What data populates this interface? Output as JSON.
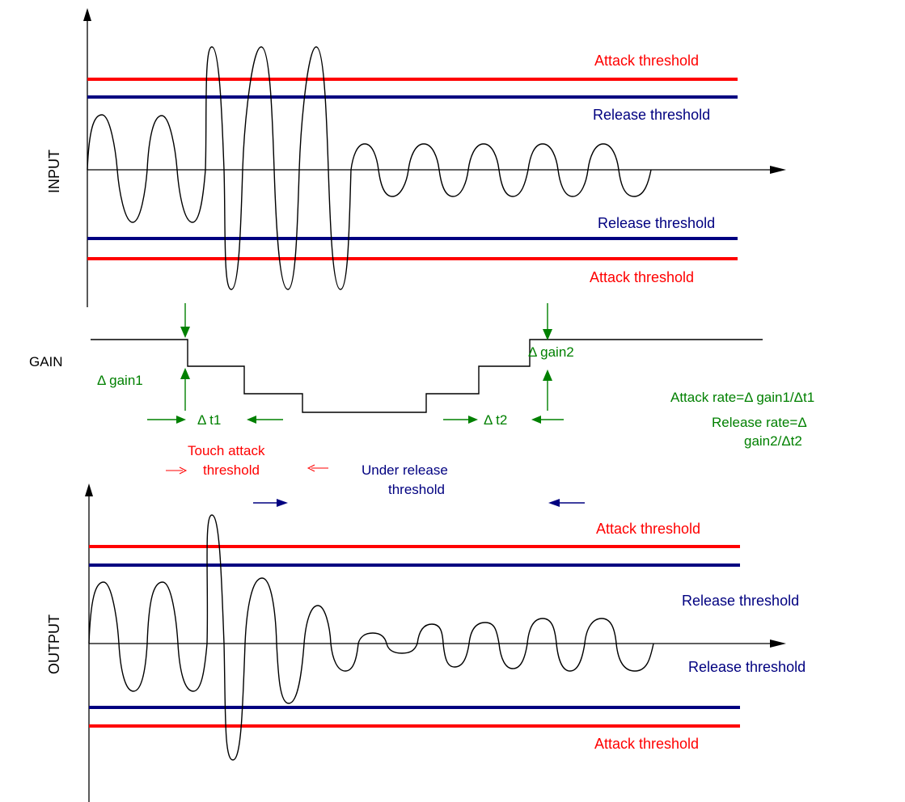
{
  "colors": {
    "attack": "#ff0000",
    "release": "#000080",
    "gain_annot": "#008000",
    "wave": "#000000",
    "axis": "#000000"
  },
  "input_panel": {
    "axis_label": "INPUT",
    "attack_top_label": "Attack threshold",
    "release_top_label": "Release threshold",
    "release_bottom_label": "Release threshold",
    "attack_bottom_label": "Attack threshold"
  },
  "gain_panel": {
    "axis_label": "GAIN",
    "delta_gain1": "Δ gain1",
    "delta_t1": "Δ t1",
    "delta_t2": "Δ t2",
    "delta_gain2": "Δ gain2",
    "attack_rate": "Attack rate=Δ gain1/Δt1",
    "release_rate_line1": "Release rate=Δ",
    "release_rate_line2": "gain2/Δt2",
    "touch_attack_line1": "Touch attack",
    "touch_attack_line2": "threshold",
    "under_release_line1": "Under  release",
    "under_release_line2": "threshold"
  },
  "output_panel": {
    "axis_label": "OUTPUT",
    "attack_top_label": "Attack threshold",
    "release_top_label": "Release threshold",
    "release_bottom_label": "Release threshold",
    "attack_bottom_label": "Attack threshold"
  }
}
